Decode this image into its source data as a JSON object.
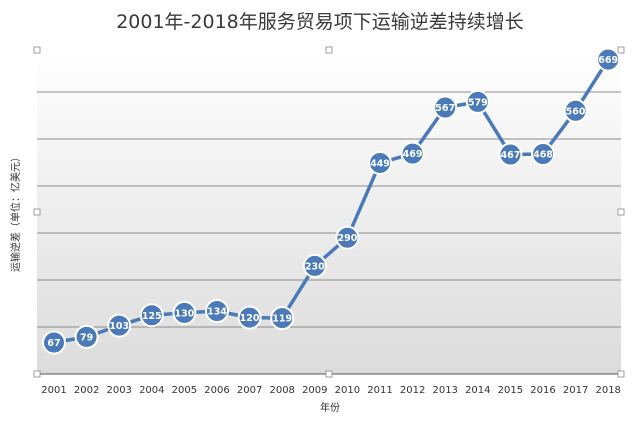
{
  "chart_data": {
    "type": "line",
    "title": "2001年-2018年服务贸易项下运输逆差持续增长",
    "xlabel": "年份",
    "ylabel": "运输逆差（单位：亿美元）",
    "categories": [
      "2001",
      "2002",
      "2003",
      "2004",
      "2005",
      "2006",
      "2007",
      "2008",
      "2009",
      "2010",
      "2011",
      "2012",
      "2013",
      "2014",
      "2015",
      "2016",
      "2017",
      "2018"
    ],
    "series": [
      {
        "values": [
          67,
          79,
          103,
          125,
          130,
          134,
          120,
          119,
          230,
          290,
          449,
          469,
          567,
          579,
          467,
          468,
          560,
          669
        ]
      }
    ],
    "ylim": [
      0,
      700
    ],
    "grid": true,
    "legend": "none",
    "colors": {
      "line": "#4a7ab8",
      "marker_fill": "#4a7ab8",
      "marker_stroke": "#ffffff",
      "grid": "#8c8c8c",
      "plot_bg_top": "#ffffff",
      "plot_bg_bottom": "#dcdcdc"
    }
  }
}
